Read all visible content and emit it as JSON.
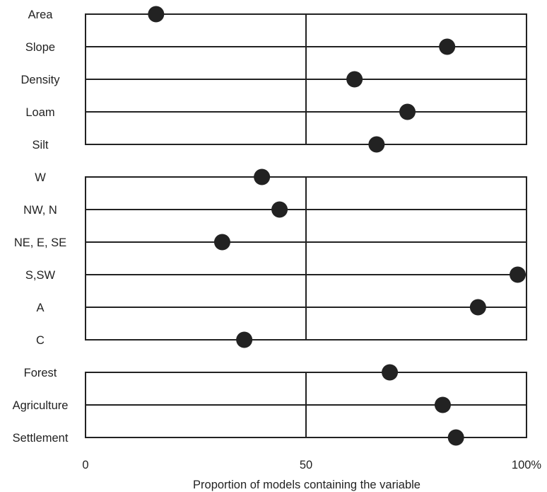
{
  "chart_data": {
    "type": "scatter",
    "title": "",
    "xlabel": "Proportion of models containing the variable",
    "ylabel": "",
    "xlim": [
      0,
      100
    ],
    "grid": "vertical line at 50",
    "x_ticks": [
      {
        "value": 0,
        "label": "0"
      },
      {
        "value": 50,
        "label": "50"
      },
      {
        "value": 100,
        "label": "100%"
      }
    ],
    "groups": [
      {
        "items": [
          {
            "label": "Area",
            "value": 16
          },
          {
            "label": "Slope",
            "value": 82
          },
          {
            "label": "Density",
            "value": 61
          },
          {
            "label": "Loam",
            "value": 73
          },
          {
            "label": "Silt",
            "value": 66
          }
        ]
      },
      {
        "items": [
          {
            "label": "W",
            "value": 40
          },
          {
            "label": "NW, N",
            "value": 44
          },
          {
            "label": "NE, E, SE",
            "value": 31
          },
          {
            "label": "S,SW",
            "value": 98
          },
          {
            "label": "A",
            "value": 89
          },
          {
            "label": "C",
            "value": 36
          }
        ]
      },
      {
        "items": [
          {
            "label": "Forest",
            "value": 69
          },
          {
            "label": "Agriculture",
            "value": 81
          },
          {
            "label": "Settlement",
            "value": 84
          }
        ]
      }
    ],
    "colors": {
      "marker": "#222222",
      "lines": "#222222",
      "background": "#ffffff"
    }
  }
}
